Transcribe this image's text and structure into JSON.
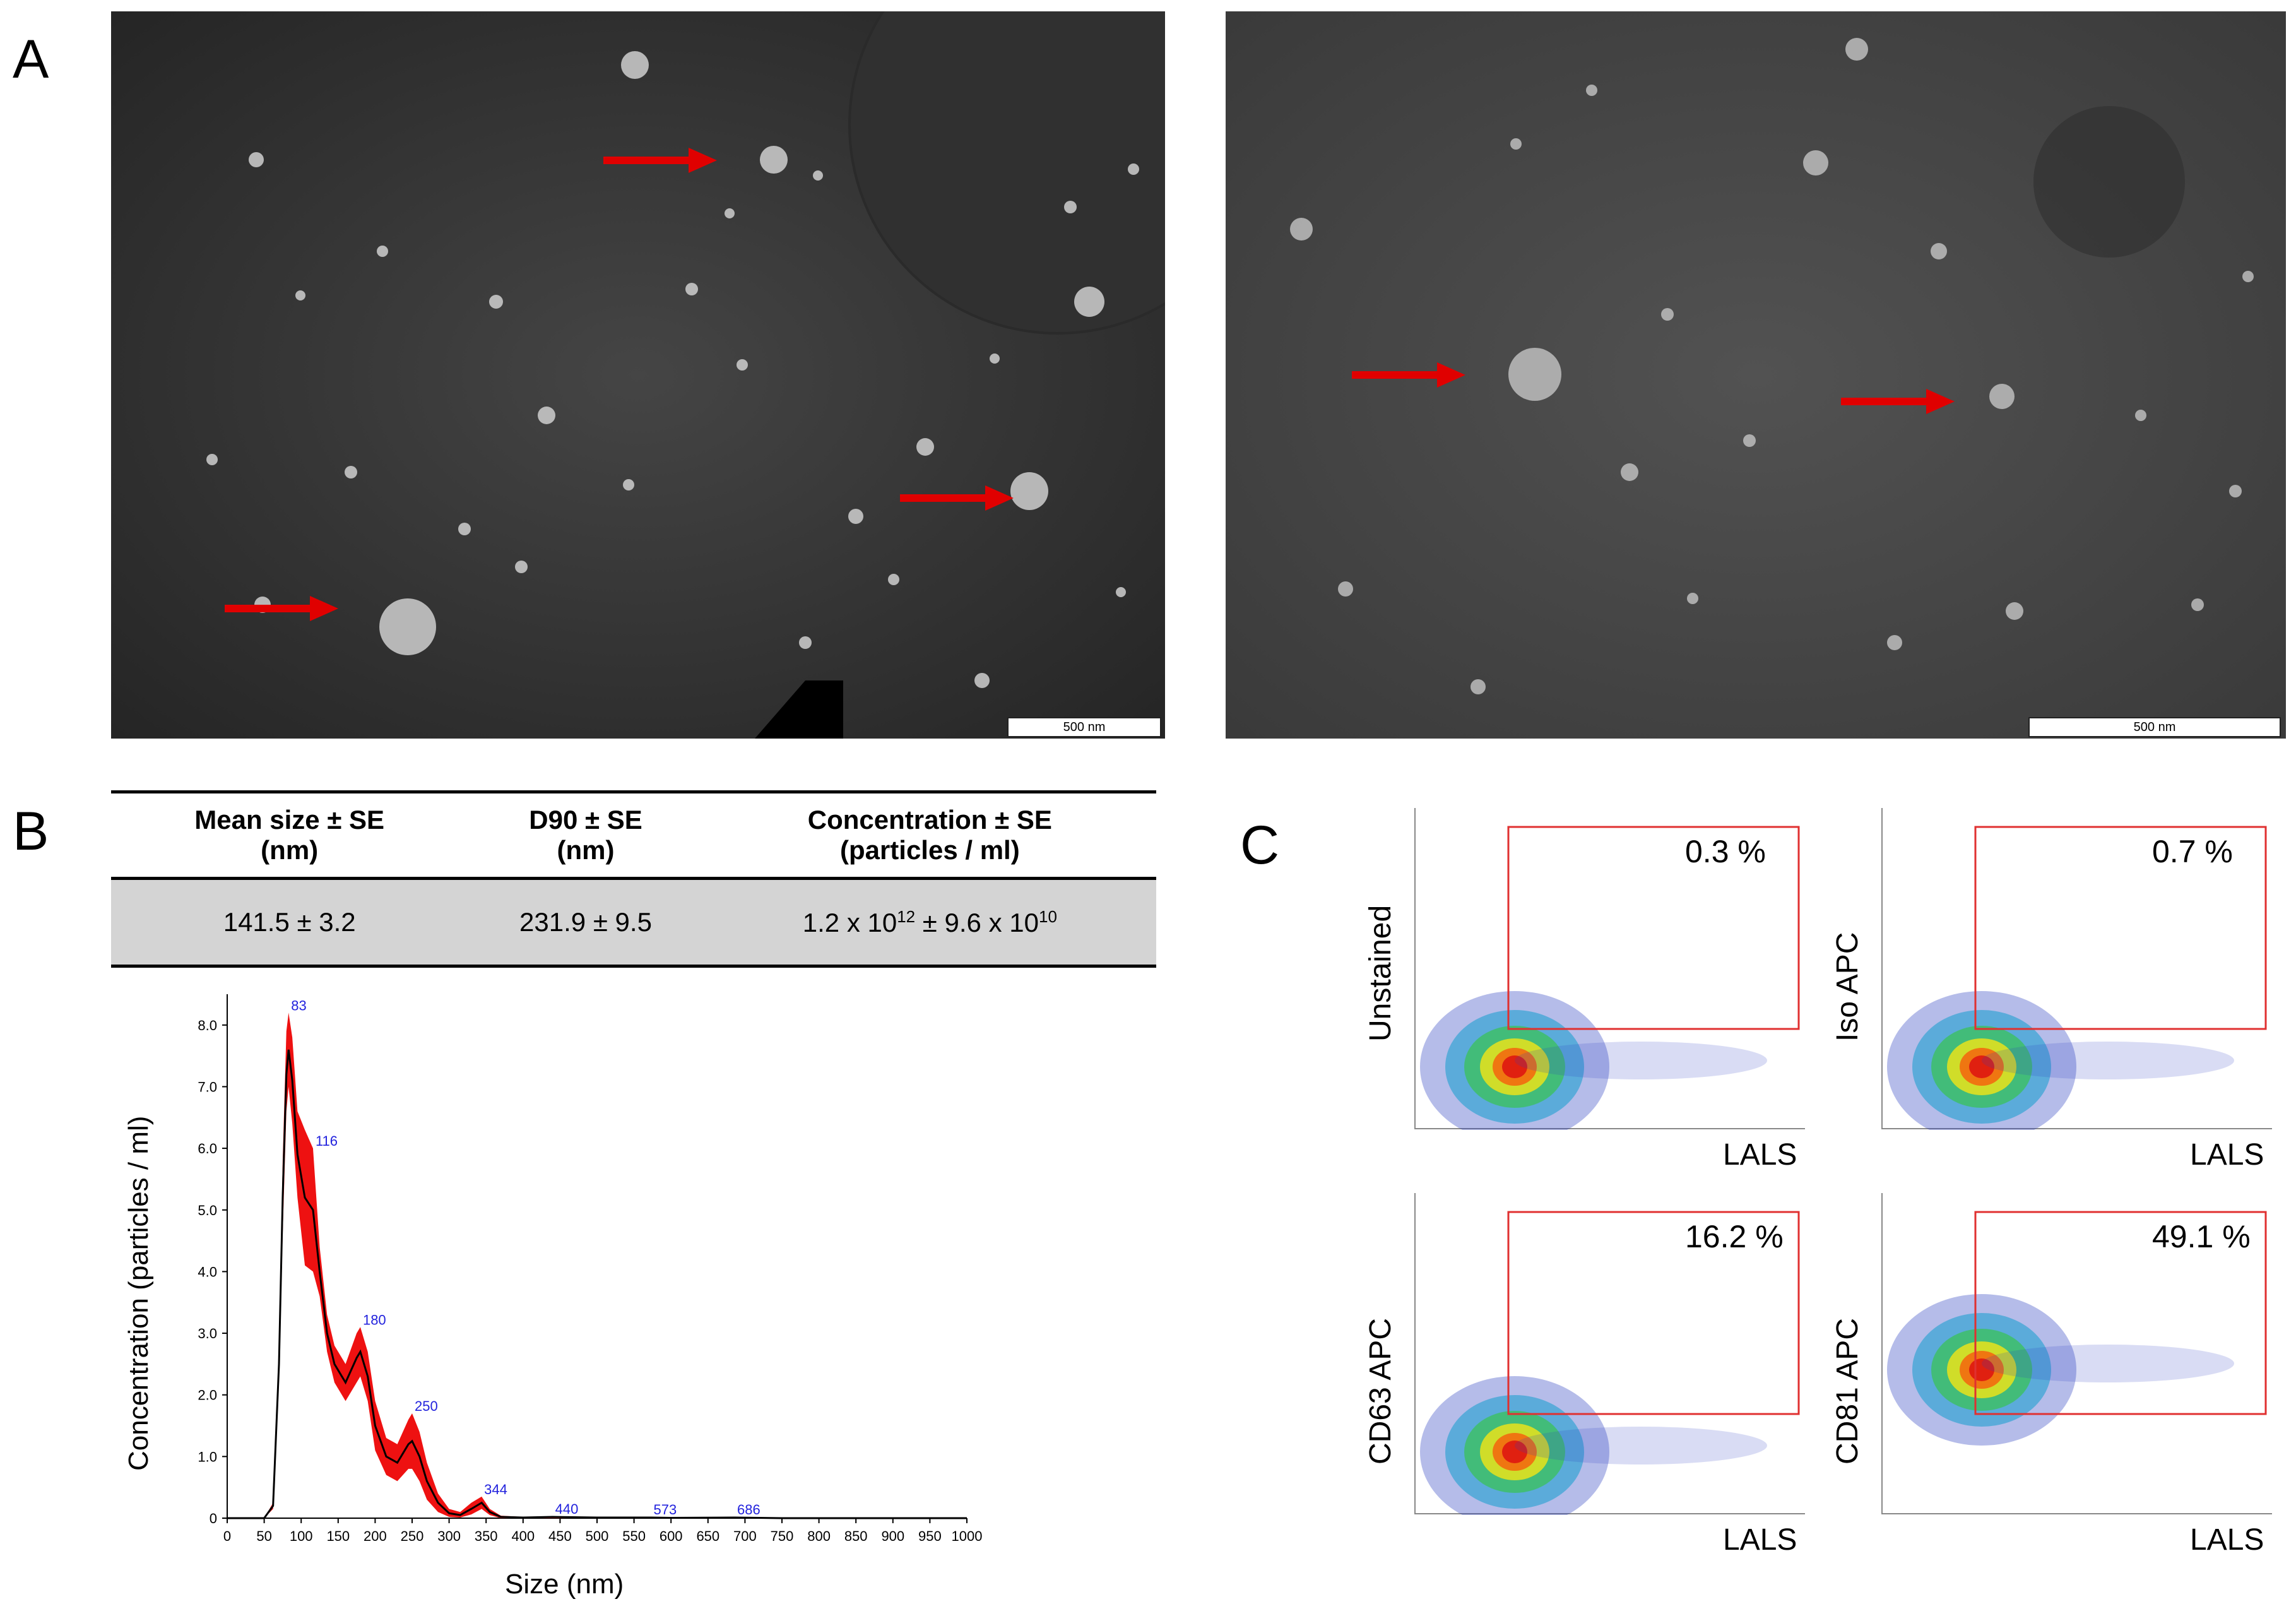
{
  "panels": {
    "a_label": "A",
    "b_label": "B",
    "c_label": "C"
  },
  "em_images": [
    {
      "scale_bar": "500 nm"
    },
    {
      "scale_bar": "500 nm"
    }
  ],
  "table": {
    "headers": [
      [
        "Mean size ± SE",
        "(nm)"
      ],
      [
        "D90 ± SE",
        "(nm)"
      ],
      [
        "Concentration ± SE",
        "(particles / ml)"
      ]
    ],
    "row": {
      "mean_size": "141.5 ± 3.2",
      "d90": "231.9 ± 9.5",
      "conc_prefix": "1.2 x 10",
      "conc_exp1": "12",
      "conc_mid": " ± 9.6 x 10",
      "conc_exp2": "10"
    }
  },
  "chart_data": {
    "type": "line",
    "xlabel": "Size (nm)",
    "ylabel": "Concentration (particles / ml)",
    "xlim": [
      0,
      1000
    ],
    "ylim": [
      0,
      8.5
    ],
    "x_ticks": [
      "0",
      "50",
      "100",
      "150",
      "200",
      "250",
      "300",
      "350",
      "400",
      "450",
      "500",
      "550",
      "600",
      "650",
      "700",
      "750",
      "800",
      "850",
      "900",
      "950",
      "1000"
    ],
    "y_ticks": [
      "0",
      "1.0",
      "2.0",
      "3.0",
      "4.0",
      "5.0",
      "6.0",
      "7.0",
      "8.0"
    ],
    "peak_labels": [
      "83",
      "116",
      "180",
      "250",
      "344",
      "440",
      "573",
      "686"
    ],
    "peak_positions": [
      83,
      116,
      180,
      250,
      344,
      440,
      573,
      686
    ],
    "series": [
      {
        "x": [
          0,
          50,
          62,
          70,
          75,
          80,
          83,
          88,
          95,
          105,
          116,
          125,
          135,
          145,
          160,
          175,
          180,
          190,
          200,
          215,
          230,
          245,
          250,
          260,
          270,
          285,
          300,
          315,
          330,
          344,
          355,
          370,
          400,
          440,
          500,
          573,
          600,
          686,
          750,
          1000
        ],
        "y": [
          0,
          0,
          0.2,
          2.5,
          5.2,
          7.2,
          7.6,
          7.1,
          5.9,
          5.2,
          5.0,
          4.0,
          3.0,
          2.5,
          2.2,
          2.6,
          2.7,
          2.3,
          1.5,
          1.0,
          0.9,
          1.2,
          1.25,
          1.0,
          0.6,
          0.25,
          0.08,
          0.05,
          0.15,
          0.25,
          0.1,
          0.02,
          0.01,
          0.02,
          0.01,
          0.01,
          0.005,
          0.01,
          0,
          0
        ],
        "upper": [
          0,
          0,
          0.25,
          2.8,
          5.8,
          7.9,
          8.2,
          7.8,
          6.6,
          6.3,
          6.0,
          4.4,
          3.3,
          2.8,
          2.5,
          3.0,
          3.1,
          2.7,
          1.9,
          1.3,
          1.2,
          1.6,
          1.7,
          1.4,
          0.9,
          0.4,
          0.15,
          0.1,
          0.25,
          0.35,
          0.15,
          0.04,
          0.02,
          0.03,
          0.02,
          0.02,
          0.01,
          0.02,
          0,
          0
        ],
        "lower": [
          0,
          0,
          0.15,
          2.2,
          4.6,
          6.6,
          7.0,
          6.4,
          5.2,
          4.1,
          4.0,
          3.6,
          2.7,
          2.2,
          1.9,
          2.2,
          2.3,
          1.9,
          1.1,
          0.7,
          0.6,
          0.8,
          0.8,
          0.6,
          0.3,
          0.1,
          0.02,
          0.01,
          0.06,
          0.15,
          0.05,
          0,
          0,
          0,
          0,
          0,
          0,
          0,
          0,
          0
        ]
      }
    ]
  },
  "flow": [
    {
      "ylabel": "Unstained",
      "xlabel": "LALS",
      "percent": "0.3 %",
      "value": 0.3
    },
    {
      "ylabel": "Iso APC",
      "xlabel": "LALS",
      "percent": "0.7 %",
      "value": 0.7
    },
    {
      "ylabel": "CD63 APC",
      "xlabel": "LALS",
      "percent": "16.2 %",
      "value": 16.2
    },
    {
      "ylabel": "CD81 APC",
      "xlabel": "LALS",
      "percent": "49.1 %",
      "value": 49.1
    }
  ],
  "colors": {
    "arrow": "#e00000",
    "gate": "#e03030",
    "band": "#ee1111",
    "peak_label": "#2222dd"
  }
}
